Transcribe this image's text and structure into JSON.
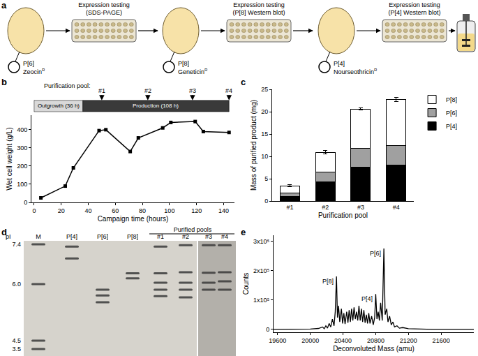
{
  "panel_a": {
    "label": "a",
    "stages": [
      {
        "plasmid": "P[6]",
        "resistance": "Zeocin",
        "resistance_sup": "R",
        "test": [
          "Expression testing",
          "(SDS-PAGE)"
        ]
      },
      {
        "plasmid": "P[8]",
        "resistance": "Geneticin",
        "resistance_sup": "R",
        "test": [
          "Expression testing",
          "(P[8] Western blot)"
        ]
      },
      {
        "plasmid": "P[4]",
        "resistance": "Nourseothricin",
        "resistance_sup": "R",
        "test": [
          "Expression testing",
          "(P[4] Western blot)"
        ]
      }
    ]
  },
  "chart_data": [
    {
      "panel": "b",
      "type": "line",
      "x": [
        5,
        23,
        29,
        48,
        53,
        71,
        77,
        95,
        101,
        119,
        125,
        144
      ],
      "values": [
        25,
        90,
        190,
        395,
        400,
        280,
        355,
        410,
        440,
        445,
        390,
        385
      ],
      "color": "#000000",
      "marker": "square",
      "line_style": "solid",
      "xlabel": "Campaign time (hours)",
      "ylabel": "Wet cell weight (g/L)",
      "xlim": [
        -2,
        148
      ],
      "xticks": [
        0,
        20,
        40,
        60,
        80,
        100,
        120,
        140
      ],
      "ylim": [
        0,
        480
      ],
      "yticks": [
        0,
        100,
        200,
        300,
        400
      ],
      "grid": false,
      "phases": [
        {
          "label": "Outgrowth (36 h)",
          "start": 0,
          "end": 36,
          "color": "#d9d9d9"
        },
        {
          "label": "Production (108 h)",
          "start": 36,
          "end": 144,
          "color": "#3a3a3a"
        }
      ],
      "pool_title": "Purification pool:",
      "pools": [
        {
          "label": "#1",
          "x": 50
        },
        {
          "label": "#2",
          "x": 84
        },
        {
          "label": "#3",
          "x": 117
        },
        {
          "label": "#4",
          "x": 144
        }
      ]
    },
    {
      "panel": "c",
      "type": "bar",
      "stacked": true,
      "categories": [
        "#1",
        "#2",
        "#3",
        "#4"
      ],
      "series": [
        {
          "name": "P[4]",
          "color": "#000000",
          "values": [
            1.0,
            4.3,
            7.6,
            8.0
          ]
        },
        {
          "name": "P[6]",
          "color": "#a0a0a0",
          "values": [
            0.8,
            2.2,
            4.2,
            4.4
          ]
        },
        {
          "name": "P[8]",
          "color": "#ffffff",
          "values": [
            1.6,
            4.4,
            8.8,
            10.3
          ],
          "errors": [
            0.2,
            0.4,
            0.2,
            0.5
          ]
        }
      ],
      "xlabel": "Purification pool",
      "ylabel": "Mass of purified product (mg)",
      "ylim": [
        0,
        25
      ],
      "yticks": [
        0,
        5,
        10,
        15,
        20,
        25
      ],
      "grid": false,
      "legend": "top right"
    },
    {
      "panel": "e",
      "type": "line",
      "x": [
        19550,
        19800,
        20000,
        20100,
        20150,
        20170,
        20190,
        20210,
        20230,
        20250,
        20270,
        20290,
        20305,
        20320,
        20332,
        20345,
        20360,
        20380,
        20395,
        20410,
        20425,
        20445,
        20460,
        20475,
        20490,
        20505,
        20520,
        20535,
        20550,
        20565,
        20580,
        20595,
        20610,
        20625,
        20640,
        20655,
        20670,
        20685,
        20700,
        20715,
        20730,
        20750,
        20770,
        20787,
        20800,
        20815,
        20830,
        20845,
        20860,
        20880,
        20900,
        20915,
        20935,
        20950,
        20970,
        20990,
        21010,
        21030,
        21060,
        21090,
        21130,
        21200,
        21300,
        21500,
        22000
      ],
      "values": [
        0,
        0,
        1000,
        3000,
        8000,
        2000,
        12000,
        4000,
        20000,
        8000,
        35000,
        12000,
        60000,
        180000,
        40000,
        80000,
        25000,
        70000,
        20000,
        55000,
        18000,
        60000,
        22000,
        65000,
        25000,
        70000,
        30000,
        75000,
        35000,
        60000,
        30000,
        80000,
        30000,
        70000,
        25000,
        65000,
        22000,
        50000,
        20000,
        55000,
        20000,
        45000,
        15000,
        40000,
        120000,
        35000,
        60000,
        30000,
        90000,
        30000,
        275000,
        50000,
        70000,
        25000,
        45000,
        15000,
        25000,
        8000,
        12000,
        4000,
        6000,
        2000,
        1000,
        0,
        0
      ],
      "color": "#000000",
      "line_style": "solid",
      "xlabel": "Deconvoluted Mass (amu)",
      "ylabel": "Counts",
      "xlim": [
        19550,
        22000
      ],
      "xticks": [
        19600,
        20000,
        20400,
        20800,
        21200,
        21600
      ],
      "ylim": [
        -10000,
        320000
      ],
      "yticks": [
        0,
        {
          "value": 100000,
          "label": "1x10⁵"
        },
        {
          "value": 200000,
          "label": "2x10⁵"
        },
        {
          "value": 300000,
          "label": "3x10⁵"
        }
      ],
      "grid": false,
      "annotations": [
        {
          "text": "P[8]",
          "x": 20320,
          "y": 180000
        },
        {
          "text": "P[4]",
          "x": 20800,
          "y": 120000
        },
        {
          "text": "P[6]",
          "x": 20900,
          "y": 275000
        }
      ]
    }
  ],
  "panel_d": {
    "label": "d",
    "axis_label": "pI",
    "ticks": [
      {
        "value": 7.4,
        "label": "7.4"
      },
      {
        "value": 6,
        "label": "6.0"
      },
      {
        "value": 4.5,
        "label": "4.5"
      },
      {
        "value": 3.5,
        "label": "3.5"
      }
    ],
    "lanes": [
      {
        "label": "M",
        "bands": [
          7.4,
          6.0,
          4.5,
          3.5
        ]
      },
      {
        "label": "P[4]",
        "bands": [
          7.32,
          6.9
        ]
      },
      {
        "label": "P[6]",
        "bands": [
          5.85,
          5.7,
          5.52
        ]
      },
      {
        "label": "P[8]",
        "bands": [
          6.38,
          6.2
        ]
      }
    ],
    "purified_pools": {
      "label": "Purified pools",
      "lanes": [
        {
          "label": "#1",
          "bands": [
            7.32,
            6.38,
            6.05,
            5.85,
            5.68
          ]
        },
        {
          "label": "#2",
          "bands": [
            7.37,
            6.42,
            6.05,
            5.85,
            5.65
          ]
        },
        {
          "label": "#3",
          "bands": [
            7.37,
            6.4,
            6.05,
            5.85
          ]
        },
        {
          "label": "#4",
          "bands": [
            7.37,
            6.42,
            6.1,
            5.85
          ]
        }
      ]
    }
  }
}
